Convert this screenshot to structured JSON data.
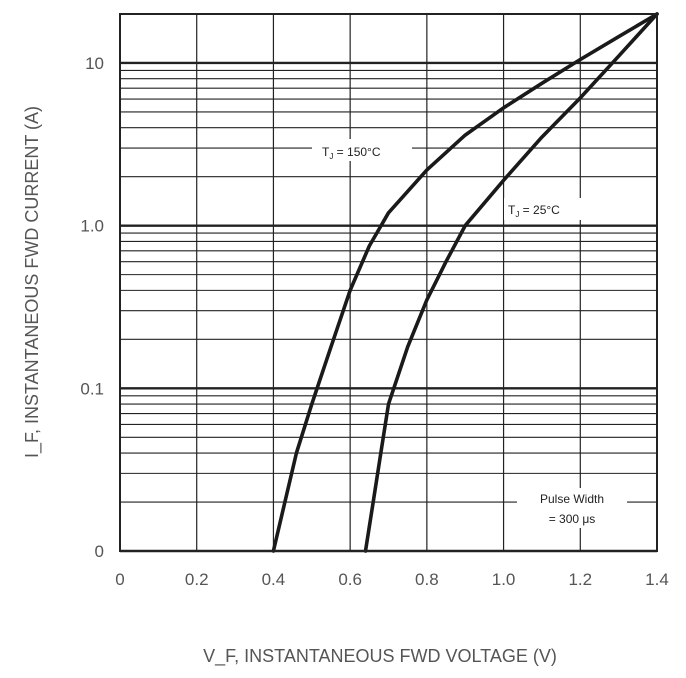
{
  "chart_data": {
    "type": "line",
    "xlabel": "V_F, INSTANTANEOUS FWD VOLTAGE (V)",
    "ylabel": "I_F, INSTANTANEOUS FWD CURRENT (A)",
    "xlim": [
      0,
      1.4
    ],
    "y_scale": "log",
    "ylim": [
      0.01,
      20
    ],
    "grid": true,
    "x_ticks": [
      "0",
      "0.2",
      "0.4",
      "0.6",
      "0.8",
      "1.0",
      "1.2",
      "1.4"
    ],
    "y_ticks": [
      {
        "label": "0",
        "value": 0.01
      },
      {
        "label": "0.1",
        "value": 0.1
      },
      {
        "label": "1.0",
        "value": 1.0
      },
      {
        "label": "10",
        "value": 10
      }
    ],
    "series": [
      {
        "name": "T_J = 150°C",
        "x": [
          0.4,
          0.43,
          0.46,
          0.5,
          0.55,
          0.6,
          0.65,
          0.7,
          0.8,
          0.9,
          1.0,
          1.1,
          1.2,
          1.3,
          1.4
        ],
        "y": [
          0.01,
          0.02,
          0.04,
          0.08,
          0.18,
          0.4,
          0.75,
          1.2,
          2.2,
          3.6,
          5.3,
          7.5,
          10.5,
          14.5,
          20
        ]
      },
      {
        "name": "T_J = 25°C",
        "x": [
          0.64,
          0.66,
          0.68,
          0.7,
          0.75,
          0.8,
          0.85,
          0.9,
          1.0,
          1.1,
          1.2,
          1.3,
          1.4
        ],
        "y": [
          0.01,
          0.02,
          0.04,
          0.08,
          0.18,
          0.35,
          0.6,
          1.0,
          1.9,
          3.5,
          6.1,
          11,
          20
        ]
      }
    ],
    "annotations": {
      "tj150": {
        "label": "T",
        "sub": "J",
        "rest": " =  150°C"
      },
      "tj25": {
        "label": "T",
        "sub": "J",
        "rest": " =  25°C"
      },
      "pulse_line1": "Pulse Width",
      "pulse_line2": "=  300 μs"
    },
    "colors": {
      "grid": "#222222",
      "curve": "#1a1a1a",
      "tick_text": "#555555"
    }
  }
}
